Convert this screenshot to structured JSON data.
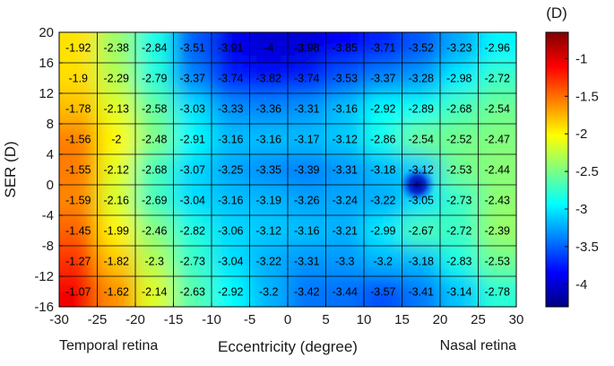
{
  "chart_data": {
    "type": "heatmap",
    "title": "",
    "xlabel": "Eccentricity (degree)",
    "ylabel": "SER (D)",
    "x_side_labels": {
      "left": "Temporal retina",
      "right": "Nasal retina"
    },
    "xlim": [
      -30,
      30
    ],
    "ylim": [
      -16,
      20
    ],
    "xticks": [
      "-30",
      "-25",
      "-20",
      "-15",
      "-10",
      "-5",
      "0",
      "5",
      "10",
      "15",
      "20",
      "25",
      "30"
    ],
    "yticks": [
      "20",
      "16",
      "12",
      "8",
      "4",
      "0",
      "-4",
      "-8",
      "-12",
      "-16"
    ],
    "x_bin_edges": [
      -30,
      -25,
      -20,
      -15,
      -10,
      -5,
      0,
      5,
      10,
      15,
      20,
      25,
      30
    ],
    "y_bin_edges": [
      20,
      16,
      12,
      8,
      4,
      0,
      -4,
      -8,
      -12,
      -16
    ],
    "values": [
      [
        "-1.92",
        "-2.38",
        "-2.84",
        "-3.51",
        "-3.91",
        "-4",
        "-3.98",
        "-3.85",
        "-3.71",
        "-3.52",
        "-3.23",
        "-2.96"
      ],
      [
        "-1.9",
        "-2.29",
        "-2.79",
        "-3.37",
        "-3.74",
        "-3.82",
        "-3.74",
        "-3.53",
        "-3.37",
        "-3.28",
        "-2.98",
        "-2.72"
      ],
      [
        "-1.78",
        "-2.13",
        "-2.58",
        "-3.03",
        "-3.33",
        "-3.36",
        "-3.31",
        "-3.16",
        "-2.92",
        "-2.89",
        "-2.68",
        "-2.54"
      ],
      [
        "-1.56",
        "-2",
        "-2.48",
        "-2.91",
        "-3.16",
        "-3.16",
        "-3.17",
        "-3.12",
        "-2.86",
        "-2.54",
        "-2.52",
        "-2.47"
      ],
      [
        "-1.55",
        "-2.12",
        "-2.68",
        "-3.07",
        "-3.25",
        "-3.35",
        "-3.39",
        "-3.31",
        "-3.18",
        "-3.12",
        "-2.53",
        "-2.44"
      ],
      [
        "-1.59",
        "-2.16",
        "-2.69",
        "-3.04",
        "-3.16",
        "-3.19",
        "-3.26",
        "-3.24",
        "-3.22",
        "-3.05",
        "-2.73",
        "-2.43"
      ],
      [
        "-1.45",
        "-1.99",
        "-2.46",
        "-2.82",
        "-3.06",
        "-3.12",
        "-3.16",
        "-3.21",
        "-2.99",
        "-2.67",
        "-2.72",
        "-2.39"
      ],
      [
        "-1.27",
        "-1.82",
        "-2.3",
        "-2.73",
        "-3.04",
        "-3.22",
        "-3.31",
        "-3.3",
        "-3.2",
        "-3.18",
        "-2.83",
        "-2.53"
      ],
      [
        "-1.07",
        "-1.62",
        "-2.14",
        "-2.63",
        "-2.92",
        "-3.2",
        "-3.42",
        "-3.44",
        "-3.57",
        "-3.41",
        "-3.14",
        "-2.78"
      ]
    ],
    "colorbar": {
      "label": "(D)",
      "range": [
        -4.3,
        -0.65
      ],
      "ticks": [
        "-1",
        "-1.5",
        "-2",
        "-2.5",
        "-3",
        "-3.5",
        "-4"
      ],
      "colormap": "jet"
    },
    "blind_spot": {
      "x": 17,
      "y": 0,
      "value": -4.2
    }
  }
}
